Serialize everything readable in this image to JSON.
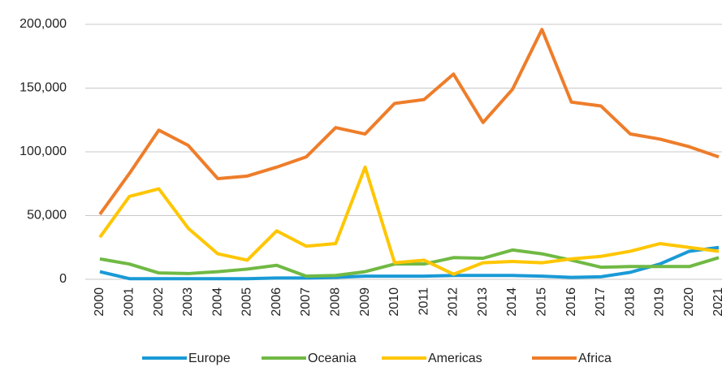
{
  "chart_data": {
    "type": "line",
    "categories": [
      "2000",
      "2001",
      "2002",
      "2003",
      "2004",
      "2005",
      "2006",
      "2007",
      "2008",
      "2009",
      "2010",
      "2011",
      "2012",
      "2013",
      "2014",
      "2015",
      "2016",
      "2017",
      "2018",
      "2019",
      "2020",
      "2021"
    ],
    "series": [
      {
        "name": "Europe",
        "color": "#1a9ad6",
        "values": [
          6000,
          500,
          500,
          500,
          500,
          500,
          1000,
          1000,
          1500,
          2500,
          2500,
          2500,
          3000,
          3000,
          3000,
          2500,
          1500,
          2000,
          5500,
          12000,
          22000,
          25000
        ]
      },
      {
        "name": "Oceania",
        "color": "#70b944",
        "values": [
          16000,
          12000,
          5000,
          4500,
          6000,
          8000,
          11000,
          2500,
          3000,
          6000,
          12000,
          12000,
          17000,
          16500,
          23000,
          20000,
          15000,
          9500,
          10000,
          10000,
          10000,
          17000
        ]
      },
      {
        "name": "Americas",
        "color": "#ffc600",
        "values": [
          33000,
          65000,
          71000,
          40000,
          20000,
          15000,
          38000,
          26000,
          28000,
          88000,
          13000,
          15000,
          4000,
          13000,
          14000,
          13000,
          16000,
          18000,
          22000,
          28000,
          25000,
          22000
        ]
      },
      {
        "name": "Africa",
        "color": "#ee7d2a",
        "values": [
          51000,
          83000,
          117000,
          105000,
          79000,
          81000,
          88000,
          96000,
          119000,
          114000,
          138000,
          141000,
          161000,
          123000,
          149000,
          196000,
          139000,
          136000,
          114000,
          110000,
          104000,
          96000
        ]
      }
    ],
    "ylim": [
      0,
      200000
    ],
    "yticks": [
      0,
      {
        "value": 50000,
        "label": "50,000"
      },
      {
        "value": 100000,
        "label": "100,000"
      },
      {
        "value": 150000,
        "label": "150,000"
      },
      {
        "value": 200000,
        "label": "200,000"
      }
    ],
    "grid": true,
    "legend": "bottom"
  }
}
